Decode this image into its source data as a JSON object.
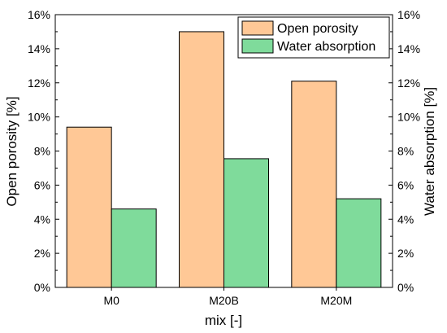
{
  "chart_data": {
    "type": "bar",
    "categories": [
      "M0",
      "M20B",
      "M20M"
    ],
    "series": [
      {
        "name": "Open porosity",
        "values": [
          9.4,
          15.0,
          12.1
        ],
        "color": "#FFC896"
      },
      {
        "name": "Water absorption",
        "values": [
          4.6,
          7.55,
          5.2
        ],
        "color": "#7FDB9B"
      }
    ],
    "xlabel": "mix [-]",
    "ylabel_left": "Open porosity [%]",
    "ylabel_right": "Water absorption [%]",
    "ylim": [
      0,
      16
    ],
    "yticks": [
      "0%",
      "2%",
      "4%",
      "6%",
      "8%",
      "10%",
      "12%",
      "14%",
      "16%"
    ],
    "grid": false,
    "legend_position": "top-right"
  }
}
